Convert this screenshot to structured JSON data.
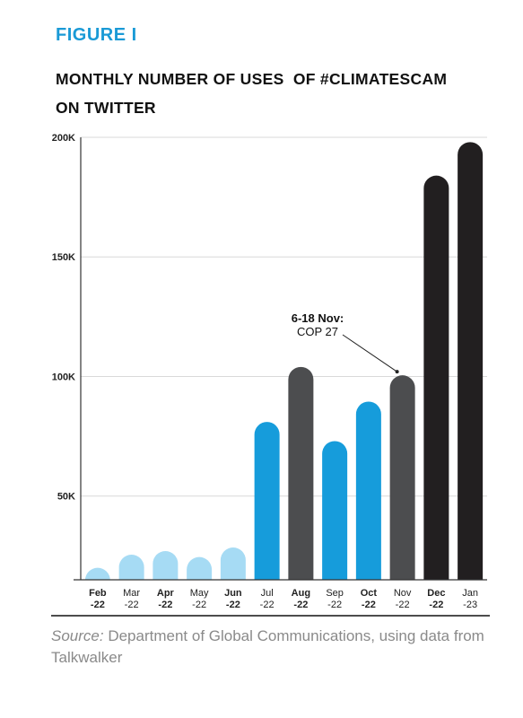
{
  "figure_label": "FIGURE I",
  "title": "MONTHLY NUMBER OF USES  OF #CLIMATESCAM\nON TWITTER",
  "source": {
    "prefix": "Source:",
    "text": " Department of Global Communications, using data from Talkwalker"
  },
  "colors": {
    "light_blue": "#a6dbf4",
    "blue": "#169cdb",
    "dark_gray": "#4c4d4f",
    "black": "#221f20"
  },
  "chart_data": {
    "type": "bar",
    "categories": [
      {
        "month": "Feb",
        "year": "-22",
        "bold": true
      },
      {
        "month": "Mar",
        "year": "-22",
        "bold": false
      },
      {
        "month": "Apr",
        "year": "-22",
        "bold": true
      },
      {
        "month": "May",
        "year": "-22",
        "bold": false
      },
      {
        "month": "Jun",
        "year": "-22",
        "bold": true
      },
      {
        "month": "Jul",
        "year": "-22",
        "bold": false
      },
      {
        "month": "Aug",
        "year": "-22",
        "bold": true
      },
      {
        "month": "Sep",
        "year": "-22",
        "bold": false
      },
      {
        "month": "Oct",
        "year": "-22",
        "bold": true
      },
      {
        "month": "Nov",
        "year": "-22",
        "bold": false
      },
      {
        "month": "Dec",
        "year": "-22",
        "bold": true
      },
      {
        "month": "Jan",
        "year": "-23",
        "bold": false
      }
    ],
    "values": [
      20000,
      25500,
      27000,
      24500,
      28500,
      81000,
      104000,
      73000,
      89500,
      100500,
      184000,
      198000
    ],
    "bar_colors": [
      "light_blue",
      "light_blue",
      "light_blue",
      "light_blue",
      "light_blue",
      "blue",
      "dark_gray",
      "blue",
      "blue",
      "dark_gray",
      "black",
      "black"
    ],
    "y_ticks": [
      50000,
      100000,
      150000,
      200000
    ],
    "y_tick_labels": [
      "50K",
      "100K",
      "150K",
      "200K"
    ],
    "ylim": [
      15000,
      200000
    ],
    "grid": true,
    "annotation": {
      "bold": "6-18 Nov:",
      "text": "COP 27",
      "target_index": 9
    }
  }
}
